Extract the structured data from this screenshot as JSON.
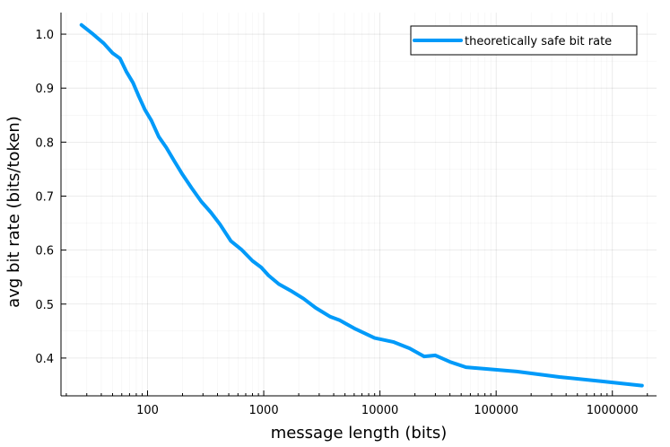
{
  "chart_data": {
    "type": "line",
    "xscale": "log10",
    "xlim": [
      18,
      2400000
    ],
    "ylim": [
      0.33,
      1.04
    ],
    "xlabel": "message length (bits)",
    "ylabel": "avg bit rate (bits/token)",
    "grid": true,
    "legend_position": "top-right",
    "x_ticks": [
      100,
      1000,
      10000,
      100000,
      1000000
    ],
    "x_tick_labels": [
      "100",
      "1000",
      "10000",
      "100000",
      "1000000"
    ],
    "y_ticks": [
      0.4,
      0.5,
      0.6,
      0.7,
      0.8,
      0.9,
      1.0
    ],
    "y_tick_labels": [
      "0.4",
      "0.5",
      "0.6",
      "0.7",
      "0.8",
      "0.9",
      "1.0"
    ],
    "series": [
      {
        "name": "theoretically safe bit rate",
        "color": "#009af9",
        "points": [
          [
            27,
            1.017
          ],
          [
            34,
            1.0
          ],
          [
            42,
            0.983
          ],
          [
            50,
            0.965
          ],
          [
            58,
            0.955
          ],
          [
            66,
            0.93
          ],
          [
            75,
            0.91
          ],
          [
            84,
            0.885
          ],
          [
            95,
            0.86
          ],
          [
            108,
            0.84
          ],
          [
            125,
            0.81
          ],
          [
            145,
            0.79
          ],
          [
            170,
            0.765
          ],
          [
            200,
            0.74
          ],
          [
            240,
            0.715
          ],
          [
            290,
            0.69
          ],
          [
            350,
            0.67
          ],
          [
            420,
            0.648
          ],
          [
            520,
            0.617
          ],
          [
            650,
            0.6
          ],
          [
            800,
            0.58
          ],
          [
            950,
            0.568
          ],
          [
            1100,
            0.553
          ],
          [
            1350,
            0.537
          ],
          [
            1700,
            0.525
          ],
          [
            2200,
            0.51
          ],
          [
            2800,
            0.493
          ],
          [
            3700,
            0.477
          ],
          [
            4500,
            0.47
          ],
          [
            6000,
            0.455
          ],
          [
            9000,
            0.437
          ],
          [
            13000,
            0.43
          ],
          [
            18000,
            0.418
          ],
          [
            24000,
            0.403
          ],
          [
            30000,
            0.405
          ],
          [
            40000,
            0.393
          ],
          [
            55000,
            0.383
          ],
          [
            80000,
            0.38
          ],
          [
            150000,
            0.375
          ],
          [
            350000,
            0.365
          ],
          [
            800000,
            0.357
          ],
          [
            1800000,
            0.349
          ]
        ]
      }
    ]
  }
}
